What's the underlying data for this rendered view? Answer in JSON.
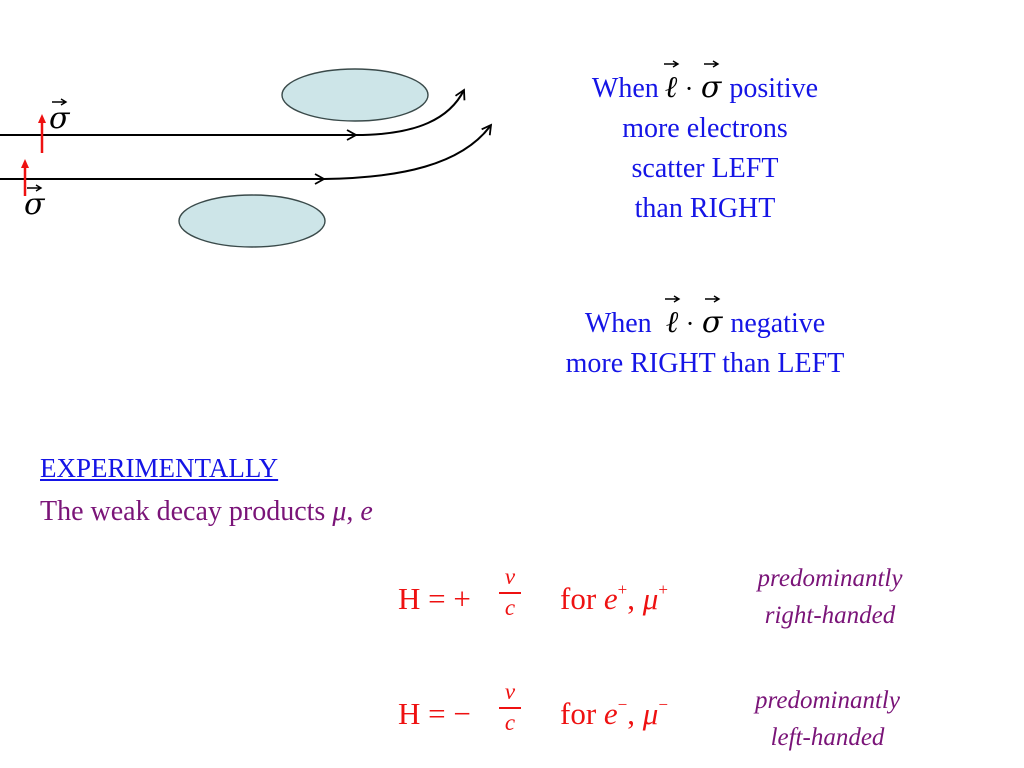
{
  "colors": {
    "beam_line": "#000000",
    "spin_arrow": "#ee1111",
    "nucleus_fill": "#cde5e8",
    "nucleus_stroke": "#3a4a4a",
    "rule_text": "#1515e6",
    "experimental_text": "#1515e6",
    "decay_text": "#7a1478",
    "helicity_text": "#ee1111",
    "handedness_text": "#7a1478"
  },
  "diagram": {
    "spin_label_top": "σ",
    "spin_label_bottom": "σ",
    "nucleus_top": "nucleus",
    "nucleus_bottom": "nucleus"
  },
  "rules": {
    "positive": {
      "lines": [
        "When",
        "positive",
        "more electrons",
        "scatter LEFT",
        "than RIGHT"
      ]
    },
    "negative": {
      "lines": [
        "When",
        "negative",
        "more RIGHT than LEFT"
      ]
    },
    "symbol_ell": "ℓ",
    "symbol_dot": "·",
    "symbol_sigma": "σ"
  },
  "experimental": {
    "heading": "EXPERIMENTALLY",
    "decay_text": "The weak decay products",
    "mu": "μ",
    "sep": ",",
    "e": "e"
  },
  "helicity": {
    "positive": {
      "lhs": "H = +",
      "num": "v",
      "den": "c",
      "for": "for",
      "particle1": "e",
      "charge1": "+",
      "sep": ",",
      "particle2": "μ",
      "charge2": "+"
    },
    "negative": {
      "lhs": "H = −",
      "num": "v",
      "den": "c",
      "for": "for",
      "particle1": "e",
      "charge1": "−",
      "sep": ",",
      "particle2": "μ",
      "charge2": "−"
    }
  },
  "handedness": {
    "positive": [
      "predominantly",
      "right-handed"
    ],
    "negative": [
      "predominantly",
      "left-handed"
    ]
  }
}
